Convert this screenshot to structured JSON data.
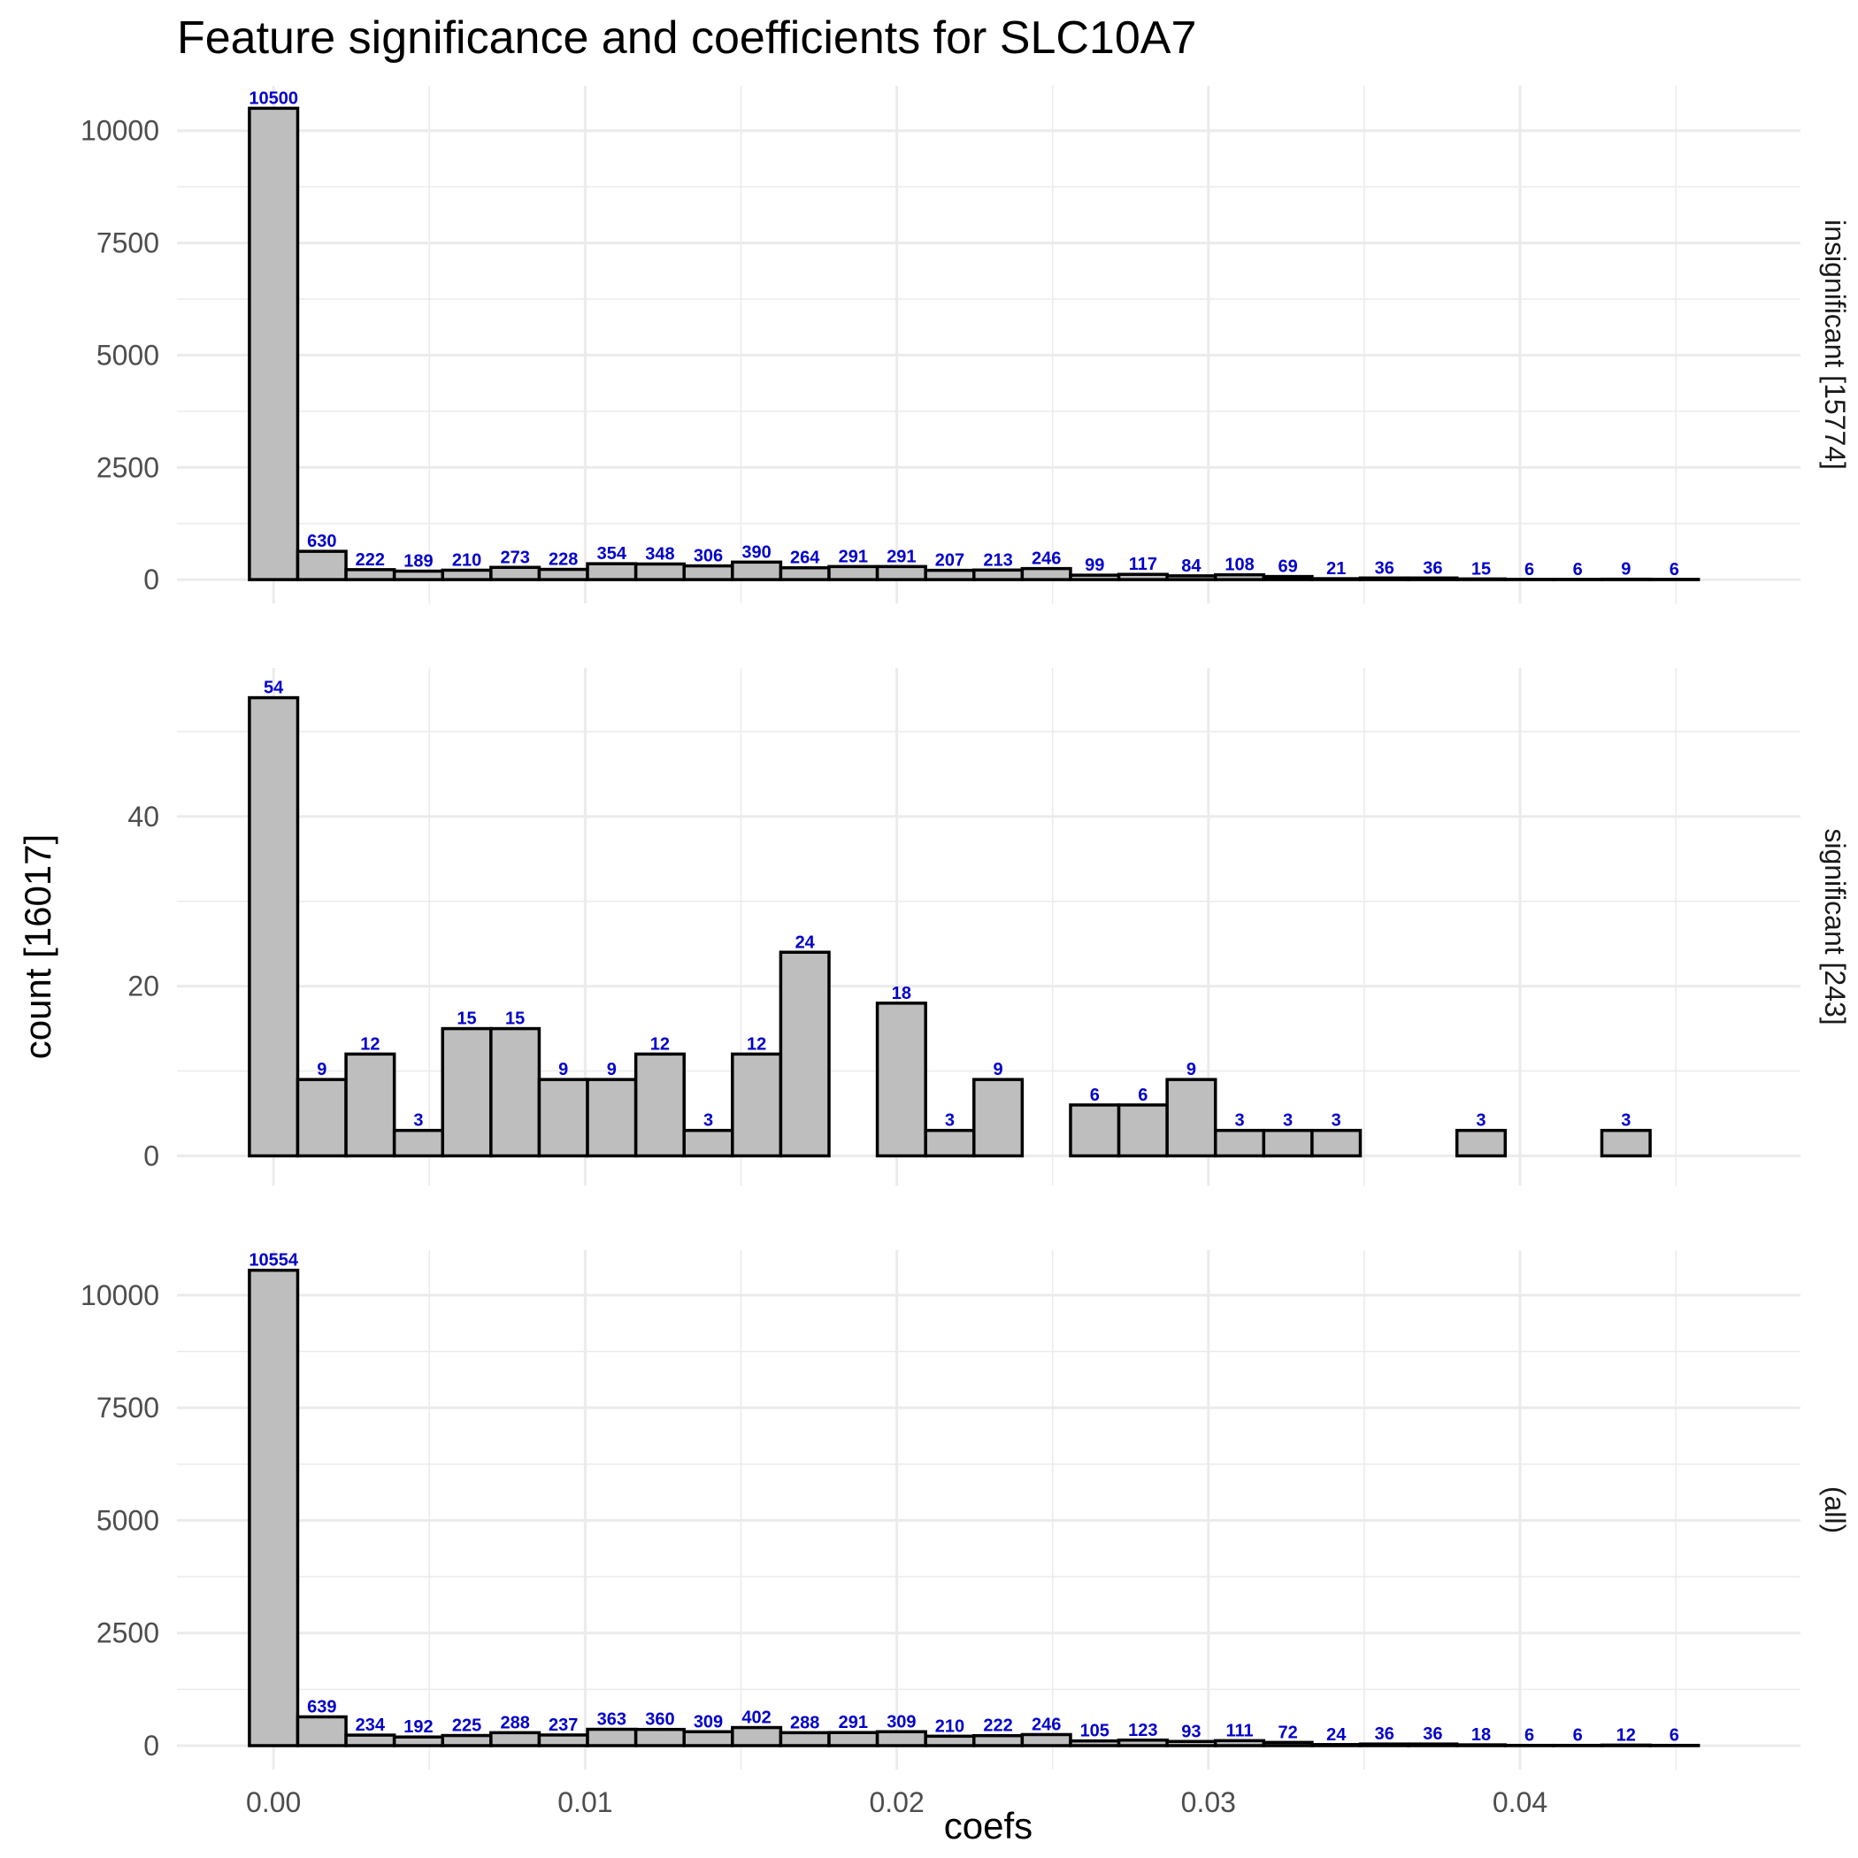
{
  "chart_data": {
    "type": "bar",
    "title": "Feature significance and coefficients for SLC10A7",
    "xlabel": "coefs",
    "ylabel": "count [16017]",
    "bin_width": 0.00155,
    "bin_centers_start": 0.0,
    "xlim": [
      -0.0031,
      0.049
    ],
    "x_ticks": [
      0.0,
      0.01,
      0.02,
      0.03,
      0.04
    ],
    "x_tick_labels": [
      "0.00",
      "0.01",
      "0.02",
      "0.03",
      "0.04"
    ],
    "bar_fill": "#bebebe",
    "bar_stroke": "#000000",
    "label_color": "#0000cc",
    "grid": true,
    "panels": [
      {
        "strip_label": "insignificant [15774]",
        "ylim": [
          -530,
          11000
        ],
        "y_ticks": [
          0,
          2500,
          5000,
          7500,
          10000
        ],
        "y_tick_labels": [
          "0",
          "2500",
          "5000",
          "7500",
          "10000"
        ],
        "values": [
          10500,
          630,
          222,
          189,
          210,
          273,
          228,
          354,
          348,
          306,
          390,
          264,
          291,
          291,
          207,
          213,
          246,
          99,
          117,
          84,
          108,
          69,
          21,
          36,
          36,
          15,
          6,
          6,
          9,
          6
        ],
        "labels": [
          "10500",
          "630",
          "222",
          "189",
          "210",
          "273",
          "228",
          "354",
          "348",
          "306",
          "390",
          "264",
          "291",
          "291",
          "207",
          "213",
          "246",
          "99",
          "117",
          "84",
          "108",
          "69",
          "21",
          "36",
          "36",
          "15",
          "6",
          "6",
          "9",
          "6"
        ]
      },
      {
        "strip_label": "significant [243]",
        "ylim": [
          -3.5,
          57.5
        ],
        "y_ticks": [
          0,
          20,
          40
        ],
        "y_tick_labels": [
          "0",
          "20",
          "40"
        ],
        "values": [
          54,
          9,
          12,
          3,
          15,
          15,
          9,
          9,
          12,
          3,
          12,
          24,
          0,
          18,
          3,
          9,
          0,
          6,
          6,
          9,
          3,
          3,
          3,
          0,
          0,
          3,
          0,
          0,
          3,
          0
        ],
        "labels": [
          "54",
          "9",
          "12",
          "3",
          "15",
          "15",
          "9",
          "9",
          "12",
          "3",
          "12",
          "24",
          "",
          "18",
          "3",
          "9",
          "",
          "6",
          "6",
          "9",
          "3",
          "3",
          "3",
          "",
          "",
          "3",
          "",
          "",
          "3",
          ""
        ]
      },
      {
        "strip_label": "(all)",
        "ylim": [
          -530,
          11000
        ],
        "y_ticks": [
          0,
          2500,
          5000,
          7500,
          10000
        ],
        "y_tick_labels": [
          "0",
          "2500",
          "5000",
          "7500",
          "10000"
        ],
        "values": [
          10554,
          639,
          234,
          192,
          225,
          288,
          237,
          363,
          360,
          309,
          402,
          288,
          291,
          309,
          210,
          222,
          246,
          105,
          123,
          93,
          111,
          72,
          24,
          36,
          36,
          18,
          6,
          6,
          12,
          6
        ],
        "labels": [
          "10554",
          "639",
          "234",
          "192",
          "225",
          "288",
          "237",
          "363",
          "360",
          "309",
          "402",
          "288",
          "291",
          "309",
          "210",
          "222",
          "246",
          "105",
          "123",
          "93",
          "111",
          "72",
          "24",
          "36",
          "36",
          "18",
          "6",
          "6",
          "12",
          "6"
        ]
      }
    ]
  }
}
